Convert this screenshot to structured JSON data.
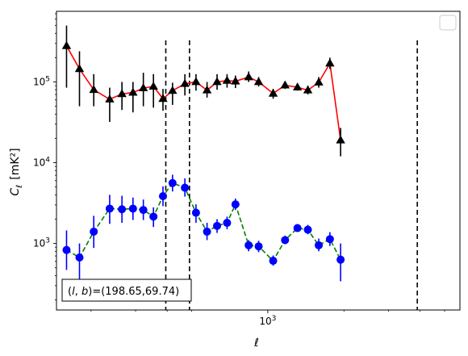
{
  "chart_data": {
    "type": "line",
    "title": "",
    "xlabel": "ℓ",
    "ylabel_main": "C",
    "ylabel_sub": "ℓ",
    "ylabel_unit": "[mK²]",
    "x_scale": "log",
    "y_scale": "log",
    "xlim": [
      146,
      5750
    ],
    "ylim": [
      150,
      750000
    ],
    "x_tick_labels": [
      {
        "value": 1000,
        "base": "10",
        "exp": "3"
      }
    ],
    "y_tick_labels": [
      {
        "value": 1000,
        "base": "10",
        "exp": "3"
      },
      {
        "value": 10000,
        "base": "10",
        "exp": "4"
      },
      {
        "value": 100000,
        "base": "10",
        "exp": "5"
      }
    ],
    "vertical_lines": [
      395,
      490,
      3900
    ],
    "annotation": "(l, b)=(198.65,69.74)",
    "annotation_prefix_l": "l",
    "annotation_prefix_b": "b",
    "annotation_values": "=(198.65,69.74)",
    "legend_location": "upper right",
    "legend_entries": [],
    "series": [
      {
        "marker": "triangle",
        "line_style": "solid",
        "line_color": "#ff0000",
        "marker_color": "#000000",
        "error_color": "#000000",
        "points": [
          {
            "x": 160,
            "y": 280000,
            "lo": 85000,
            "hi": 500000
          },
          {
            "x": 180,
            "y": 145000,
            "lo": 50000,
            "hi": 240000
          },
          {
            "x": 205,
            "y": 80000,
            "lo": 50000,
            "hi": 125000
          },
          {
            "x": 237,
            "y": 61000,
            "lo": 32000,
            "hi": 85000
          },
          {
            "x": 265,
            "y": 71000,
            "lo": 45000,
            "hi": 100000
          },
          {
            "x": 293,
            "y": 74000,
            "lo": 42000,
            "hi": 100000
          },
          {
            "x": 322,
            "y": 84000,
            "lo": 50000,
            "hi": 130000
          },
          {
            "x": 353,
            "y": 88000,
            "lo": 48000,
            "hi": 125000
          },
          {
            "x": 385,
            "y": 62000,
            "lo": 44000,
            "hi": 82000
          },
          {
            "x": 420,
            "y": 78000,
            "lo": 52000,
            "hi": 98000
          },
          {
            "x": 470,
            "y": 95000,
            "lo": 68000,
            "hi": 125000
          },
          {
            "x": 520,
            "y": 100000,
            "lo": 78000,
            "hi": 125000
          },
          {
            "x": 575,
            "y": 79000,
            "lo": 64000,
            "hi": 100000
          },
          {
            "x": 630,
            "y": 100000,
            "lo": 80000,
            "hi": 125000
          },
          {
            "x": 690,
            "y": 104000,
            "lo": 85000,
            "hi": 125000
          },
          {
            "x": 745,
            "y": 102000,
            "lo": 84000,
            "hi": 120000
          },
          {
            "x": 840,
            "y": 115000,
            "lo": 100000,
            "hi": 135000
          },
          {
            "x": 920,
            "y": 100000,
            "lo": 88000,
            "hi": 115000
          },
          {
            "x": 1050,
            "y": 72000,
            "lo": 62000,
            "hi": 82000
          },
          {
            "x": 1170,
            "y": 91000,
            "lo": 82000,
            "hi": 100000
          },
          {
            "x": 1310,
            "y": 86000,
            "lo": 78000,
            "hi": 95000
          },
          {
            "x": 1440,
            "y": 79000,
            "lo": 70000,
            "hi": 90000
          },
          {
            "x": 1590,
            "y": 99000,
            "lo": 85000,
            "hi": 115000
          },
          {
            "x": 1760,
            "y": 170000,
            "lo": 145000,
            "hi": 200000
          },
          {
            "x": 1940,
            "y": 19000,
            "lo": 12000,
            "hi": 27000
          }
        ]
      },
      {
        "marker": "circle",
        "line_style": "dashed",
        "line_color": "#008000",
        "marker_color": "#0000ff",
        "error_color": "#0000ff",
        "points": [
          {
            "x": 160,
            "y": 830,
            "lo": 470,
            "hi": 1450
          },
          {
            "x": 180,
            "y": 670,
            "lo": 330,
            "hi": 1000
          },
          {
            "x": 205,
            "y": 1400,
            "lo": 880,
            "hi": 2200
          },
          {
            "x": 237,
            "y": 2700,
            "lo": 1750,
            "hi": 4000
          },
          {
            "x": 265,
            "y": 2650,
            "lo": 1800,
            "hi": 3900
          },
          {
            "x": 293,
            "y": 2700,
            "lo": 1950,
            "hi": 3700
          },
          {
            "x": 322,
            "y": 2600,
            "lo": 1950,
            "hi": 3500
          },
          {
            "x": 353,
            "y": 2150,
            "lo": 1600,
            "hi": 2800
          },
          {
            "x": 385,
            "y": 3850,
            "lo": 2900,
            "hi": 5100
          },
          {
            "x": 420,
            "y": 5600,
            "lo": 4400,
            "hi": 7100
          },
          {
            "x": 470,
            "y": 4900,
            "lo": 3800,
            "hi": 6400
          },
          {
            "x": 520,
            "y": 2400,
            "lo": 1800,
            "hi": 3050
          },
          {
            "x": 575,
            "y": 1400,
            "lo": 1100,
            "hi": 1800
          },
          {
            "x": 630,
            "y": 1650,
            "lo": 1350,
            "hi": 2000
          },
          {
            "x": 690,
            "y": 1800,
            "lo": 1500,
            "hi": 2150
          },
          {
            "x": 745,
            "y": 3050,
            "lo": 2600,
            "hi": 3600
          },
          {
            "x": 840,
            "y": 950,
            "lo": 800,
            "hi": 1100
          },
          {
            "x": 920,
            "y": 920,
            "lo": 780,
            "hi": 1080
          },
          {
            "x": 1050,
            "y": 610,
            "lo": 530,
            "hi": 710
          },
          {
            "x": 1170,
            "y": 1100,
            "lo": 980,
            "hi": 1250
          },
          {
            "x": 1310,
            "y": 1550,
            "lo": 1400,
            "hi": 1720
          },
          {
            "x": 1440,
            "y": 1480,
            "lo": 1300,
            "hi": 1700
          },
          {
            "x": 1590,
            "y": 950,
            "lo": 800,
            "hi": 1150
          },
          {
            "x": 1760,
            "y": 1130,
            "lo": 930,
            "hi": 1380
          },
          {
            "x": 1940,
            "y": 630,
            "lo": 340,
            "hi": 1000
          }
        ]
      }
    ]
  }
}
